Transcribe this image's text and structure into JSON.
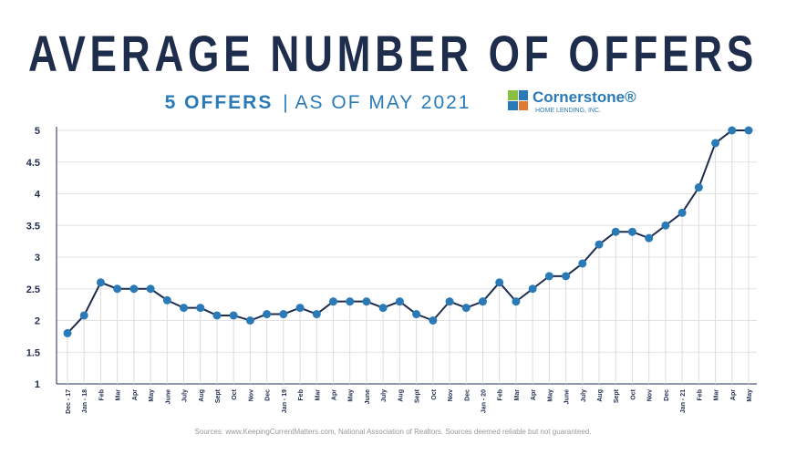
{
  "chart_data": {
    "type": "line",
    "title": "AVERAGE NUMBER OF OFFERS",
    "subtitle_highlight": "5 OFFERS",
    "subtitle_separator": "|",
    "subtitle": "AS OF MAY 2021",
    "logo_name": "Cornerstone®",
    "logo_tagline": "HOME LENDING, INC.",
    "source": "Sources: www.KeepingCurrentMatters.com, National Association of Realtors. Sources deemed reliable but not guaranteed.",
    "categories": [
      "Dec - 17",
      "Jan - 18",
      "Feb",
      "Mar",
      "Apr",
      "May",
      "June",
      "July",
      "Aug",
      "Sept",
      "Oct",
      "Nov",
      "Dec",
      "Jan - 19",
      "Feb",
      "Mar",
      "Apr",
      "May",
      "June",
      "July",
      "Aug",
      "Sept",
      "Oct",
      "Nov",
      "Dec",
      "Jan - 20",
      "Feb",
      "Mar",
      "Apr",
      "May",
      "June",
      "July",
      "Aug",
      "Sept",
      "Oct",
      "Nov",
      "Dec",
      "Jan - 21",
      "Feb",
      "Mar",
      "Apr",
      "May"
    ],
    "series": [
      {
        "color": "#1f2d4d",
        "marker_color": "#2a7ab8",
        "values": [
          1.8,
          2.08,
          2.6,
          2.5,
          2.5,
          2.5,
          2.32,
          2.2,
          2.2,
          2.08,
          2.08,
          2.0,
          2.1,
          2.1,
          2.2,
          2.1,
          2.3,
          2.3,
          2.3,
          2.2,
          2.3,
          2.1,
          2.0,
          2.3,
          2.2,
          2.3,
          2.6,
          2.3,
          2.5,
          2.7,
          2.7,
          2.9,
          3.2,
          3.4,
          3.4,
          3.3,
          3.5,
          3.7,
          4.1,
          4.8,
          5.0,
          5.0
        ]
      }
    ],
    "ylim": [
      1,
      5
    ],
    "yticks": [
      1,
      1.5,
      2,
      2.5,
      3,
      3.5,
      4,
      4.5,
      5
    ],
    "grid": true
  }
}
